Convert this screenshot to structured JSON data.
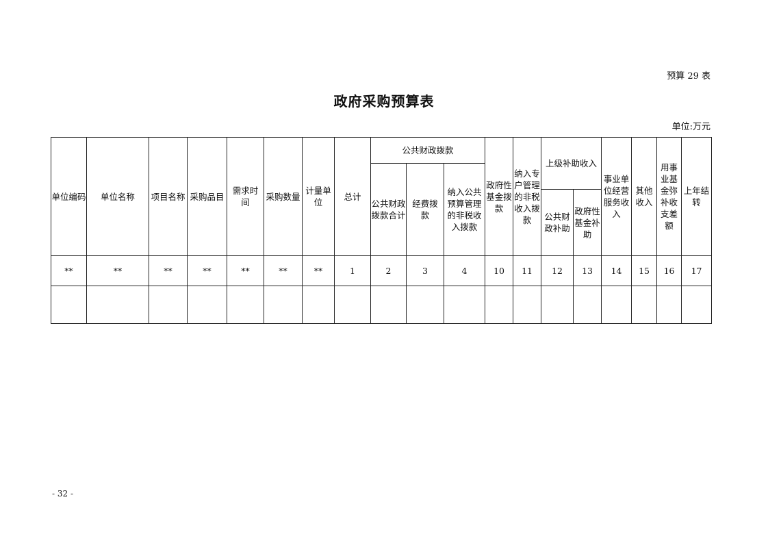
{
  "header": {
    "table_id": "预算 29 表",
    "title": "政府采购预算表",
    "unit": "单位:万元"
  },
  "table": {
    "columns": {
      "unit_code": "单位编码",
      "unit_name": "单位名称",
      "project_name": "项目名称",
      "item": "采购品目",
      "demand_time": "需求时\n间",
      "quantity": "采购数量",
      "measure_unit": "计量单\n位",
      "total": "总计",
      "public_finance": {
        "label": "公共财政拨款",
        "sub": [
          "公共财政\n拨款合计",
          "经费拨\n款",
          "纳入公共\n预算管理\n的非税收\n入拨款"
        ]
      },
      "gov_fund": "政府性\n基金拨\n款",
      "special_account": "纳入专\n户管理\n的非税\n收入拨\n款",
      "superior_subsidy": {
        "label": "上级补助收入",
        "sub": [
          "公共财\n政补助",
          "政府性\n基金补\n助"
        ]
      },
      "business_income": "事业单\n位经营\n服务收\n入",
      "other_income": "其他\n收入",
      "fund_balance": "用事\n业基\n金弥\n补收\n支差\n额",
      "carryover": "上年结\n转"
    },
    "code_row": [
      "**",
      "**",
      "**",
      "**",
      "**",
      "**",
      "**",
      "1",
      "2",
      "3",
      "4",
      "10",
      "11",
      "12",
      "13",
      "14",
      "15",
      "16",
      "17"
    ],
    "empty_row": [
      "",
      "",
      "",
      "",
      "",
      "",
      "",
      "",
      "",
      "",
      "",
      "",
      "",
      "",
      "",
      "",
      "",
      "",
      ""
    ]
  },
  "footer": {
    "page_number": "- 32 -"
  }
}
